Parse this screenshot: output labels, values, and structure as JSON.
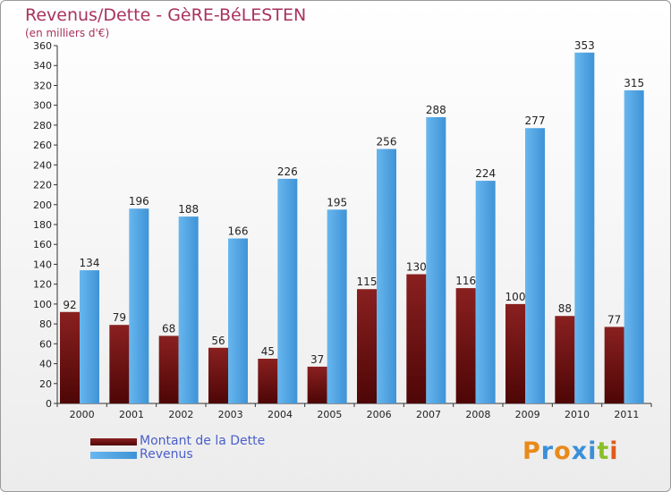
{
  "title": "Revenus/Dette - GèRE-BéLESTEN",
  "subtitle": "(en milliers d'€)",
  "legend": [
    {
      "label": "Montant de la Dette",
      "color": "#7a1414"
    },
    {
      "label": "Revenus",
      "color": "#4da3e2"
    }
  ],
  "logo": {
    "text": "Proxiti",
    "letters": [
      "P",
      "r",
      "o",
      "x",
      "i",
      "t",
      "i"
    ],
    "colors": [
      "#e88a1a",
      "#3a8fd8",
      "#e88a1a",
      "#3a8fd8",
      "#3a8fd8",
      "#8bbf2a",
      "#e05a1a"
    ]
  },
  "chart_data": {
    "type": "bar",
    "categories": [
      "2000",
      "2001",
      "2002",
      "2003",
      "2004",
      "2005",
      "2006",
      "2007",
      "2008",
      "2009",
      "2010",
      "2011"
    ],
    "series": [
      {
        "name": "Montant de la Dette",
        "values": [
          92,
          79,
          68,
          56,
          45,
          37,
          115,
          130,
          116,
          100,
          88,
          77
        ],
        "color": "#7a1414"
      },
      {
        "name": "Revenus",
        "values": [
          134,
          196,
          188,
          166,
          226,
          195,
          256,
          288,
          224,
          277,
          353,
          315
        ],
        "color": "#4da3e2"
      }
    ],
    "ylim": [
      0,
      360
    ],
    "yticks": [
      0,
      20,
      40,
      60,
      80,
      100,
      120,
      140,
      160,
      180,
      200,
      220,
      240,
      260,
      280,
      300,
      320,
      340,
      360
    ],
    "grid": false,
    "legend_position": "bottom-left"
  }
}
